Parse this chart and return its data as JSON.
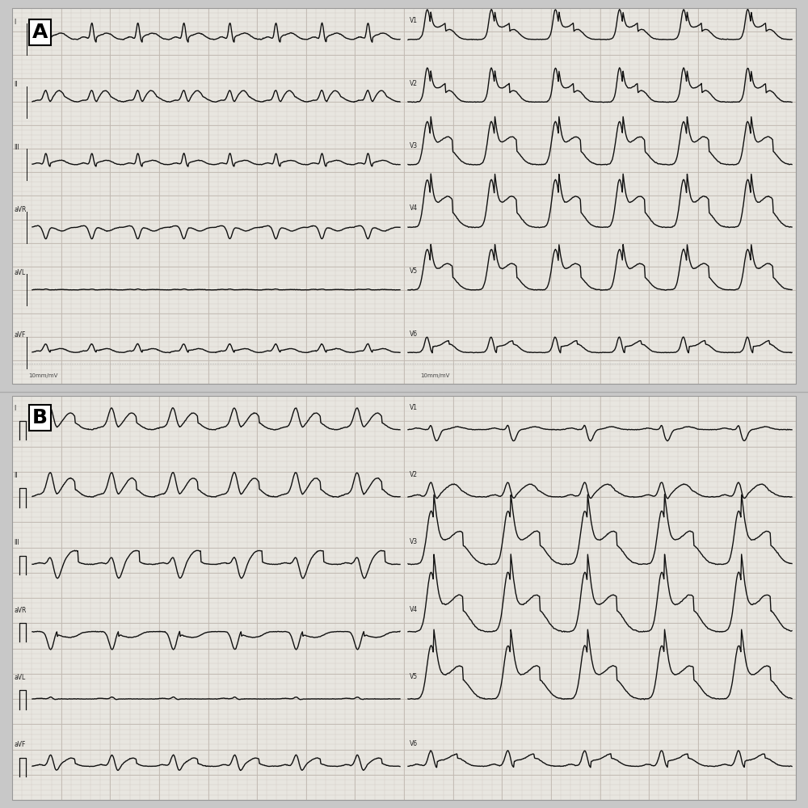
{
  "background_color": "#c8c8c8",
  "paper_color": "#e8e6e0",
  "ecg_color": "#111111",
  "grid_minor_color": "#d4ccc4",
  "grid_major_color": "#c0b8b0",
  "label_A": "A",
  "label_B": "B",
  "leads_left_A": [
    "I",
    "II",
    "III",
    "aVR",
    "aVL",
    "aVF"
  ],
  "leads_right_A": [
    "V1",
    "V2",
    "V3",
    "V4",
    "V5",
    "V6"
  ],
  "leads_left_B": [
    "I",
    "II",
    "III",
    "aVR",
    "aVL",
    "aVF"
  ],
  "leads_right_B": [
    "V1",
    "V2",
    "V3",
    "V4",
    "V5",
    "V6"
  ],
  "line_width": 1.0,
  "figsize": [
    10,
    10
  ],
  "dpi": 100
}
